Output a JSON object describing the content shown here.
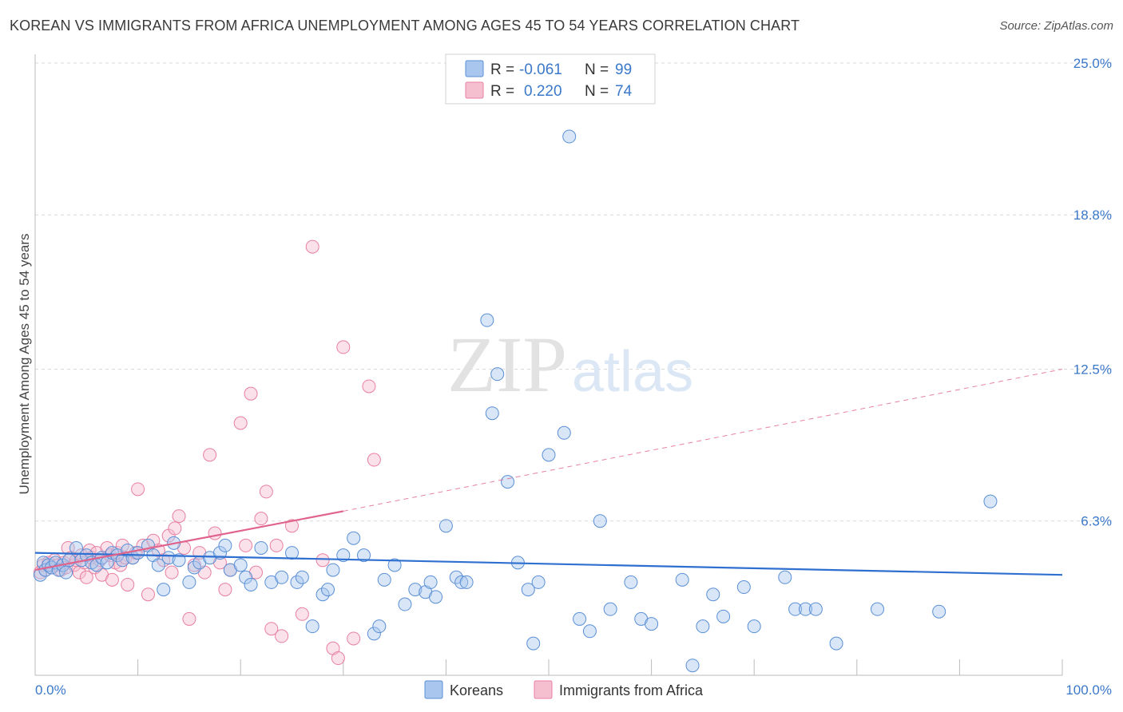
{
  "title": "KOREAN VS IMMIGRANTS FROM AFRICA UNEMPLOYMENT AMONG AGES 45 TO 54 YEARS CORRELATION CHART",
  "source": "Source: ZipAtlas.com",
  "watermark": {
    "zip": "ZIP",
    "atlas": "atlas"
  },
  "colors": {
    "koreans_fill": "#a9c7ee",
    "koreans_stroke": "#5a8fd6",
    "koreans_line": "#2f6fd0",
    "africa_fill": "#f6bfd0",
    "africa_stroke": "#e87fa0",
    "africa_line": "#e0638c",
    "tick_text": "#3b78c9",
    "grid": "#d9d9d9"
  },
  "legend": {
    "rows": [
      {
        "r_label": "R =",
        "r_value": "-0.061",
        "n_label": "N =",
        "n_value": "99"
      },
      {
        "r_label": "R =",
        "r_value": "0.220",
        "n_label": "N =",
        "n_value": "74"
      }
    ]
  },
  "chart_data": {
    "type": "scatter",
    "title": "KOREAN VS IMMIGRANTS FROM AFRICA UNEMPLOYMENT AMONG AGES 45 TO 54 YEARS CORRELATION CHART",
    "xlabel": "",
    "ylabel": "Unemployment Among Ages 45 to 54 years",
    "xlim": [
      0,
      100
    ],
    "ylim": [
      0,
      25
    ],
    "x_tick_labels": [
      "0.0%",
      "100.0%"
    ],
    "y_ticks": [
      6.3,
      12.5,
      18.8,
      25.0
    ],
    "y_tick_labels": [
      "6.3%",
      "12.5%",
      "18.8%",
      "25.0%"
    ],
    "grid": true,
    "legend_position": "bottom-center",
    "series": [
      {
        "name": "Koreans",
        "r": -0.061,
        "n": 99,
        "trend": {
          "x": [
            0,
            100
          ],
          "y": [
            5.0,
            4.1
          ]
        },
        "points": [
          [
            0.5,
            4.1
          ],
          [
            0.8,
            4.6
          ],
          [
            1.0,
            4.3
          ],
          [
            1.3,
            4.5
          ],
          [
            1.6,
            4.4
          ],
          [
            2.0,
            4.6
          ],
          [
            2.3,
            4.3
          ],
          [
            2.7,
            4.5
          ],
          [
            3.0,
            4.2
          ],
          [
            3.3,
            4.7
          ],
          [
            4.0,
            5.2
          ],
          [
            4.5,
            4.7
          ],
          [
            5.0,
            4.9
          ],
          [
            5.5,
            4.6
          ],
          [
            6.0,
            4.5
          ],
          [
            6.5,
            4.8
          ],
          [
            7.0,
            4.6
          ],
          [
            7.5,
            5.0
          ],
          [
            8.0,
            4.9
          ],
          [
            8.5,
            4.7
          ],
          [
            9.0,
            5.1
          ],
          [
            9.5,
            4.8
          ],
          [
            10.0,
            5.0
          ],
          [
            11.0,
            5.3
          ],
          [
            11.5,
            4.9
          ],
          [
            12.0,
            4.5
          ],
          [
            12.5,
            3.5
          ],
          [
            13.0,
            4.8
          ],
          [
            13.5,
            5.4
          ],
          [
            14.0,
            4.7
          ],
          [
            15.0,
            3.8
          ],
          [
            15.5,
            4.4
          ],
          [
            16.0,
            4.6
          ],
          [
            17.0,
            4.8
          ],
          [
            18.0,
            5.0
          ],
          [
            18.5,
            5.3
          ],
          [
            19.0,
            4.3
          ],
          [
            20.0,
            4.5
          ],
          [
            20.5,
            4.0
          ],
          [
            21.0,
            3.7
          ],
          [
            22.0,
            5.2
          ],
          [
            23.0,
            3.8
          ],
          [
            24.0,
            4.0
          ],
          [
            25.0,
            5.0
          ],
          [
            25.5,
            3.8
          ],
          [
            26.0,
            4.0
          ],
          [
            27.0,
            2.0
          ],
          [
            28.0,
            3.3
          ],
          [
            28.5,
            3.5
          ],
          [
            29.0,
            4.3
          ],
          [
            30.0,
            4.9
          ],
          [
            31.0,
            5.6
          ],
          [
            32.0,
            4.9
          ],
          [
            33.0,
            1.7
          ],
          [
            33.5,
            2.0
          ],
          [
            34.0,
            3.9
          ],
          [
            35.0,
            4.5
          ],
          [
            36.0,
            2.9
          ],
          [
            37.0,
            3.5
          ],
          [
            38.0,
            3.4
          ],
          [
            38.5,
            3.8
          ],
          [
            39.0,
            3.2
          ],
          [
            40.0,
            6.1
          ],
          [
            41.0,
            4.0
          ],
          [
            41.5,
            3.8
          ],
          [
            42.0,
            3.8
          ],
          [
            44.0,
            14.5
          ],
          [
            44.5,
            10.7
          ],
          [
            45.0,
            12.3
          ],
          [
            46.0,
            7.9
          ],
          [
            47.0,
            4.6
          ],
          [
            48.0,
            3.5
          ],
          [
            48.5,
            1.3
          ],
          [
            49.0,
            3.8
          ],
          [
            50.0,
            9.0
          ],
          [
            51.5,
            9.9
          ],
          [
            52.0,
            22.0
          ],
          [
            53.0,
            2.3
          ],
          [
            54.0,
            1.8
          ],
          [
            55.0,
            6.3
          ],
          [
            56.0,
            2.7
          ],
          [
            58.0,
            3.8
          ],
          [
            59.0,
            2.3
          ],
          [
            60.0,
            2.1
          ],
          [
            63.0,
            3.9
          ],
          [
            64.0,
            0.4
          ],
          [
            65.0,
            2.0
          ],
          [
            66.0,
            3.3
          ],
          [
            67.0,
            2.4
          ],
          [
            69.0,
            3.6
          ],
          [
            70.0,
            2.0
          ],
          [
            73.0,
            4.0
          ],
          [
            74.0,
            2.7
          ],
          [
            75.0,
            2.7
          ],
          [
            76.0,
            2.7
          ],
          [
            78.0,
            1.3
          ],
          [
            82.0,
            2.7
          ],
          [
            88.0,
            2.6
          ],
          [
            93.0,
            7.1
          ]
        ]
      },
      {
        "name": "Immigrants from Africa",
        "r": 0.22,
        "n": 74,
        "trend": {
          "x": [
            0,
            30
          ],
          "y": [
            4.3,
            6.7
          ]
        },
        "trend_extended": {
          "x": [
            30,
            100
          ],
          "y": [
            6.7,
            12.5
          ]
        },
        "points": [
          [
            0.5,
            4.2
          ],
          [
            0.8,
            4.5
          ],
          [
            1.0,
            4.3
          ],
          [
            1.3,
            4.6
          ],
          [
            1.6,
            4.4
          ],
          [
            1.9,
            4.7
          ],
          [
            2.2,
            4.5
          ],
          [
            2.5,
            4.3
          ],
          [
            2.8,
            4.6
          ],
          [
            3.0,
            4.4
          ],
          [
            3.2,
            5.2
          ],
          [
            3.5,
            4.8
          ],
          [
            3.8,
            4.5
          ],
          [
            4.0,
            4.7
          ],
          [
            4.3,
            4.2
          ],
          [
            4.5,
            4.9
          ],
          [
            4.8,
            4.6
          ],
          [
            5.0,
            4.0
          ],
          [
            5.3,
            5.1
          ],
          [
            5.5,
            4.8
          ],
          [
            5.8,
            4.4
          ],
          [
            6.0,
            5.0
          ],
          [
            6.3,
            4.7
          ],
          [
            6.5,
            4.1
          ],
          [
            7.0,
            5.2
          ],
          [
            7.3,
            4.9
          ],
          [
            7.5,
            3.9
          ],
          [
            7.8,
            4.6
          ],
          [
            8.0,
            5.0
          ],
          [
            8.3,
            4.5
          ],
          [
            8.5,
            5.3
          ],
          [
            8.8,
            4.8
          ],
          [
            9.0,
            3.7
          ],
          [
            9.5,
            4.8
          ],
          [
            9.8,
            5.0
          ],
          [
            10.0,
            7.6
          ],
          [
            10.5,
            5.3
          ],
          [
            11.0,
            3.3
          ],
          [
            11.5,
            5.5
          ],
          [
            12.0,
            5.1
          ],
          [
            12.5,
            4.7
          ],
          [
            13.0,
            5.7
          ],
          [
            13.3,
            4.2
          ],
          [
            13.6,
            6.0
          ],
          [
            14.0,
            6.5
          ],
          [
            14.5,
            5.2
          ],
          [
            15.0,
            2.3
          ],
          [
            15.5,
            4.5
          ],
          [
            16.0,
            5.0
          ],
          [
            16.5,
            4.2
          ],
          [
            17.0,
            9.0
          ],
          [
            17.5,
            5.8
          ],
          [
            18.0,
            4.6
          ],
          [
            18.5,
            3.5
          ],
          [
            19.0,
            4.3
          ],
          [
            20.0,
            10.3
          ],
          [
            20.5,
            5.3
          ],
          [
            21.0,
            11.5
          ],
          [
            21.5,
            4.2
          ],
          [
            22.0,
            6.4
          ],
          [
            22.5,
            7.5
          ],
          [
            23.0,
            1.9
          ],
          [
            23.5,
            5.3
          ],
          [
            24.0,
            1.6
          ],
          [
            25.0,
            6.1
          ],
          [
            26.0,
            2.5
          ],
          [
            27.0,
            17.5
          ],
          [
            28.0,
            4.7
          ],
          [
            29.0,
            1.1
          ],
          [
            29.5,
            0.7
          ],
          [
            30.0,
            13.4
          ],
          [
            31.0,
            1.5
          ],
          [
            32.5,
            11.8
          ],
          [
            33.0,
            8.8
          ]
        ]
      }
    ]
  },
  "bottom_legend": {
    "items": [
      "Koreans",
      "Immigrants from Africa"
    ]
  }
}
